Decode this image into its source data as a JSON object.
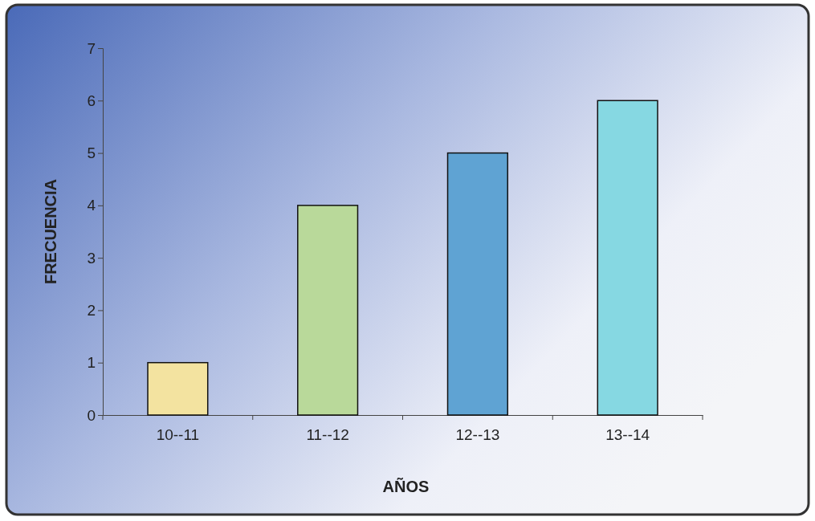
{
  "chart_data": {
    "type": "bar",
    "xlabel": "AÑOS",
    "ylabel": "FRECUENCIA",
    "categories": [
      "10--11",
      "11--12",
      "12--13",
      "13--14"
    ],
    "values": [
      1,
      4,
      5,
      6
    ],
    "colors": [
      "#f3e3a0",
      "#b9d99a",
      "#5fa3d3",
      "#86d8e2"
    ],
    "ylim": [
      0,
      7
    ],
    "yticks": [
      0,
      1,
      2,
      3,
      4,
      5,
      6,
      7
    ]
  }
}
